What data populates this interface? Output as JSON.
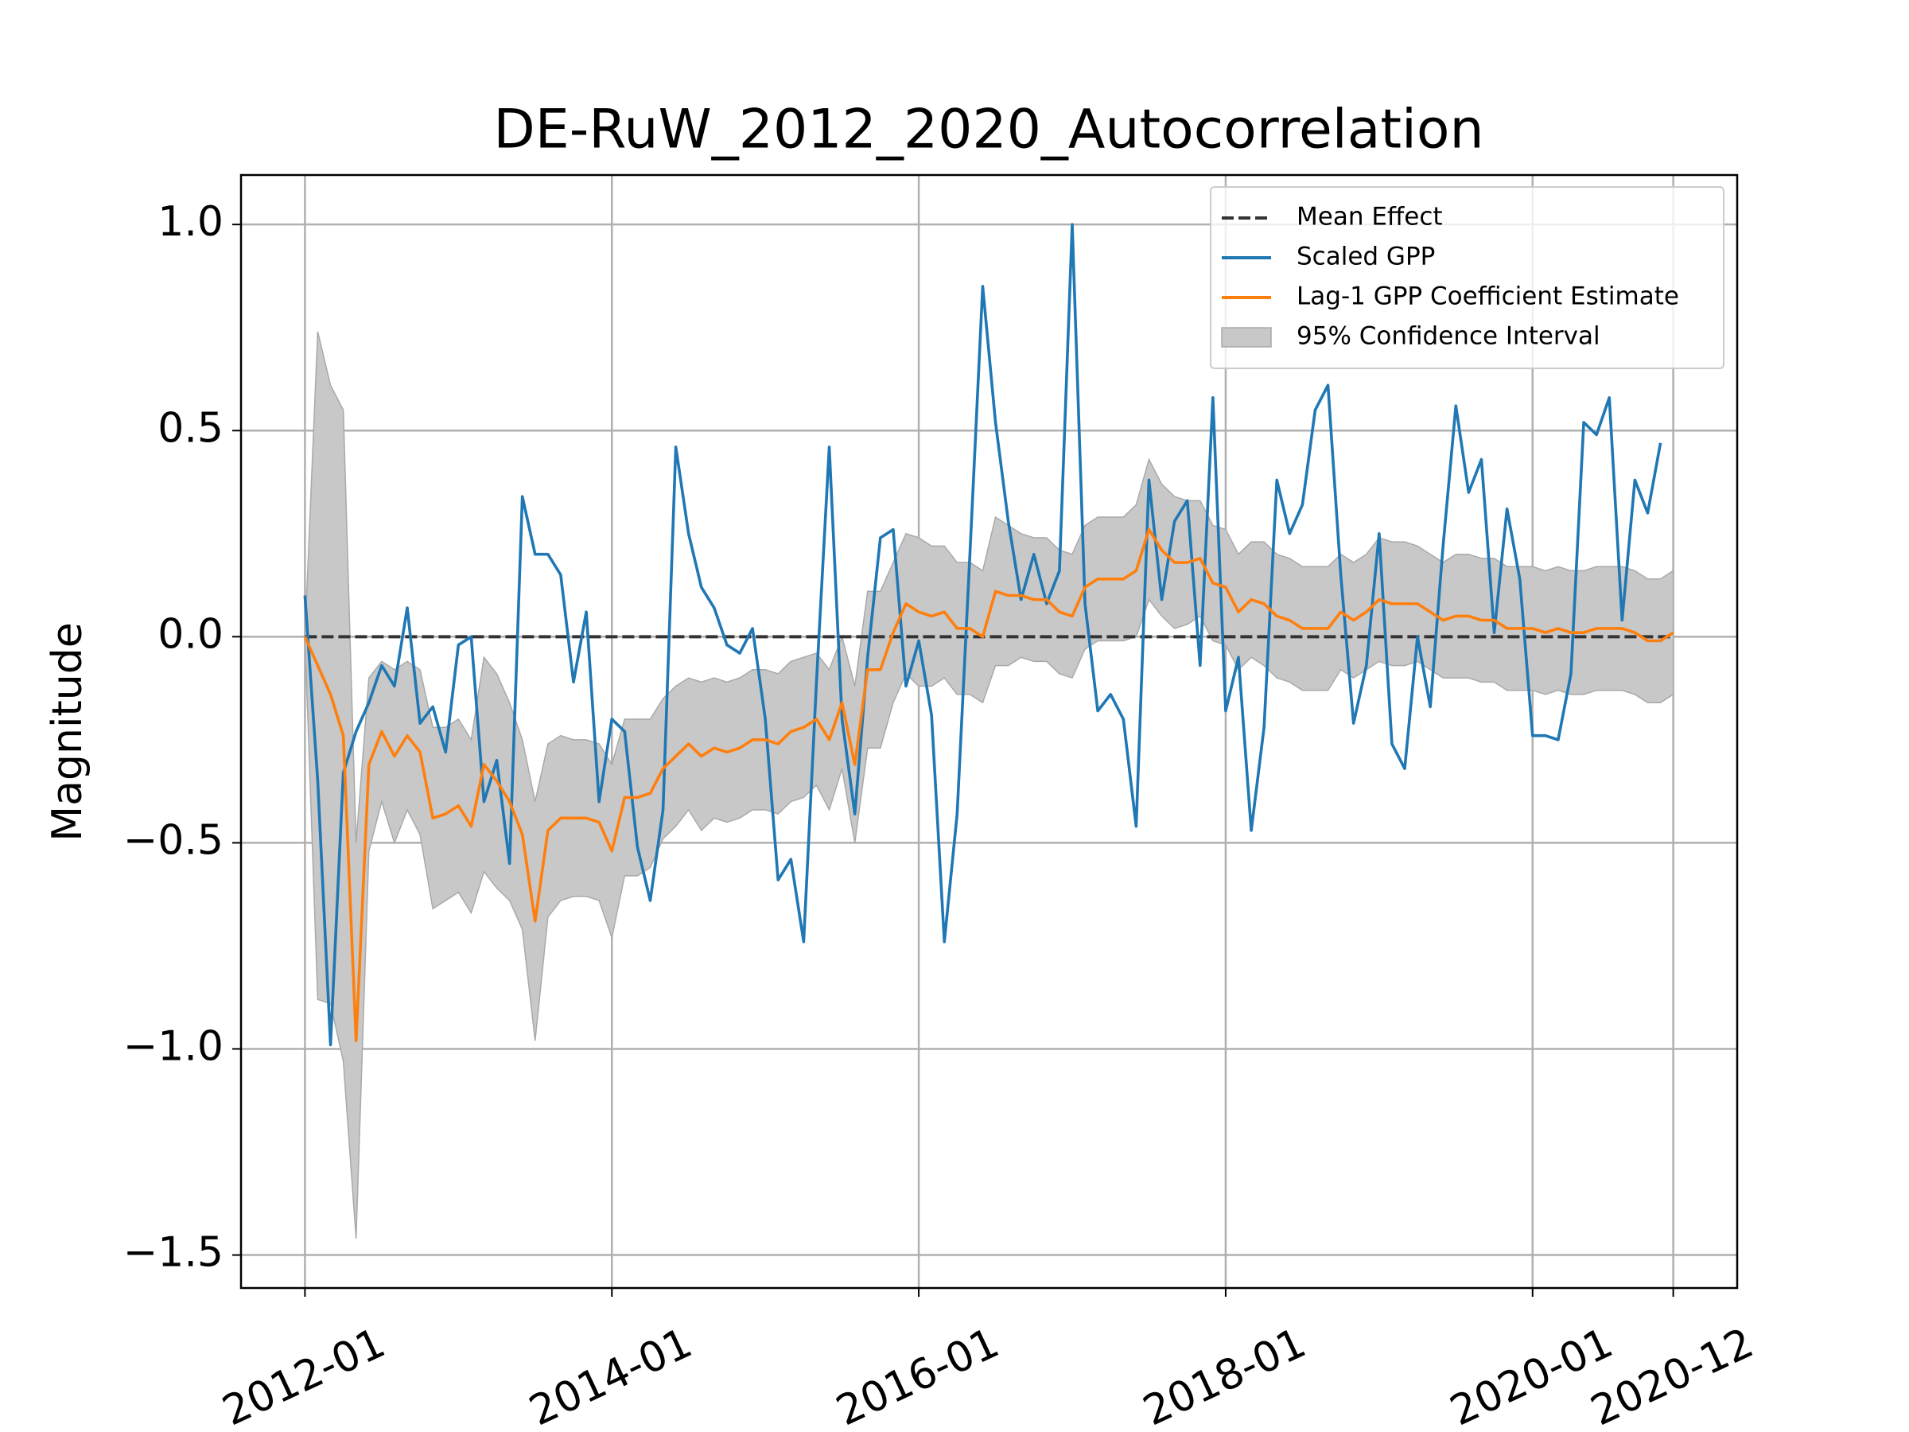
{
  "chart_data": {
    "type": "line",
    "title": "DE-RuW_2012_2020_Autocorrelation",
    "y_label": "Magnitude",
    "grid": true,
    "legend": "upper right",
    "xlim": [
      "2011-08",
      "2021-05"
    ],
    "xticks": [
      "2012-01",
      "2014-01",
      "2016-01",
      "2018-01",
      "2020-01",
      "2020-12"
    ],
    "ylim": [
      -1.58,
      1.12
    ],
    "yticks": [
      {
        "value": -1.5,
        "label": "−1.5"
      },
      {
        "value": -1.0,
        "label": "−1.0"
      },
      {
        "value": -0.5,
        "label": "−0.5"
      },
      {
        "value": 0,
        "label": "0.0"
      },
      0.5,
      {
        "value": 1.0,
        "label": "1.0"
      }
    ],
    "x": [
      "2012-01",
      "2012-02",
      "2012-03",
      "2012-04",
      "2012-05",
      "2012-06",
      "2012-07",
      "2012-08",
      "2012-09",
      "2012-10",
      "2012-11",
      "2012-12",
      "2013-01",
      "2013-02",
      "2013-03",
      "2013-04",
      "2013-05",
      "2013-06",
      "2013-07",
      "2013-08",
      "2013-09",
      "2013-10",
      "2013-11",
      "2013-12",
      "2014-01",
      "2014-02",
      "2014-03",
      "2014-04",
      "2014-05",
      "2014-06",
      "2014-07",
      "2014-08",
      "2014-09",
      "2014-10",
      "2014-11",
      "2014-12",
      "2015-01",
      "2015-02",
      "2015-03",
      "2015-04",
      "2015-05",
      "2015-06",
      "2015-07",
      "2015-08",
      "2015-09",
      "2015-10",
      "2015-11",
      "2015-12",
      "2016-01",
      "2016-02",
      "2016-03",
      "2016-04",
      "2016-05",
      "2016-06",
      "2016-07",
      "2016-08",
      "2016-09",
      "2016-10",
      "2016-11",
      "2016-12",
      "2017-01",
      "2017-02",
      "2017-03",
      "2017-04",
      "2017-05",
      "2017-06",
      "2017-07",
      "2017-08",
      "2017-09",
      "2017-10",
      "2017-11",
      "2017-12",
      "2018-01",
      "2018-02",
      "2018-03",
      "2018-04",
      "2018-05",
      "2018-06",
      "2018-07",
      "2018-08",
      "2018-09",
      "2018-10",
      "2018-11",
      "2018-12",
      "2019-01",
      "2019-02",
      "2019-03",
      "2019-04",
      "2019-05",
      "2019-06",
      "2019-07",
      "2019-08",
      "2019-09",
      "2019-10",
      "2019-11",
      "2019-12",
      "2020-01",
      "2020-02",
      "2020-03",
      "2020-04",
      "2020-05",
      "2020-06",
      "2020-07",
      "2020-08",
      "2020-09",
      "2020-10",
      "2020-11",
      "2020-12"
    ],
    "series": [
      {
        "name": "Mean Effect",
        "kind": "hline",
        "color": "#333333",
        "dashed": true,
        "value": 0
      },
      {
        "name": "Scaled GPP",
        "kind": "line",
        "color": "#1f77b4",
        "values": [
          0.1,
          -0.35,
          -0.99,
          -0.33,
          -0.23,
          -0.16,
          -0.07,
          -0.12,
          0.07,
          -0.21,
          -0.17,
          -0.28,
          -0.02,
          0.0,
          -0.4,
          -0.3,
          -0.55,
          0.34,
          0.2,
          0.2,
          0.15,
          -0.11,
          0.06,
          -0.4,
          -0.2,
          -0.23,
          -0.51,
          -0.64,
          -0.42,
          0.46,
          0.25,
          0.12,
          0.07,
          -0.02,
          -0.04,
          0.02,
          -0.2,
          -0.59,
          -0.54,
          -0.74,
          -0.11,
          0.46,
          -0.2,
          -0.43,
          -0.05,
          0.24,
          0.26,
          -0.12,
          -0.01,
          -0.19,
          -0.74,
          -0.43,
          0.2,
          0.85,
          0.52,
          0.28,
          0.09,
          0.2,
          0.08,
          0.16,
          1.0,
          0.08,
          -0.18,
          -0.14,
          -0.2,
          -0.46,
          0.38,
          0.09,
          0.28,
          0.33,
          -0.07,
          0.58,
          -0.18,
          -0.05,
          -0.47,
          -0.22,
          0.38,
          0.25,
          0.32,
          0.55,
          0.61,
          0.15,
          -0.21,
          -0.07,
          0.25,
          -0.26,
          -0.32,
          0.0,
          -0.17,
          0.22,
          0.56,
          0.35,
          0.43,
          0.01,
          0.31,
          0.14,
          -0.24,
          -0.24,
          -0.25,
          -0.09,
          0.52,
          0.49,
          0.58,
          0.04,
          0.38,
          0.3,
          0.47,
          null
        ]
      },
      {
        "name": "Lag-1 GPP Coefficient Estimate",
        "kind": "line",
        "color": "#ff7f0e",
        "values": [
          0.0,
          -0.07,
          -0.14,
          -0.24,
          -0.98,
          -0.31,
          -0.23,
          -0.29,
          -0.24,
          -0.28,
          -0.44,
          -0.43,
          -0.41,
          -0.46,
          -0.31,
          -0.35,
          -0.4,
          -0.48,
          -0.69,
          -0.47,
          -0.44,
          -0.44,
          -0.44,
          -0.45,
          -0.52,
          -0.39,
          -0.39,
          -0.38,
          -0.32,
          -0.29,
          -0.26,
          -0.29,
          -0.27,
          -0.28,
          -0.27,
          -0.25,
          -0.25,
          -0.26,
          -0.23,
          -0.22,
          -0.2,
          -0.25,
          -0.16,
          -0.31,
          -0.08,
          -0.08,
          0.01,
          0.08,
          0.06,
          0.05,
          0.06,
          0.02,
          0.02,
          0.0,
          0.11,
          0.1,
          0.1,
          0.09,
          0.09,
          0.06,
          0.05,
          0.12,
          0.14,
          0.14,
          0.14,
          0.16,
          0.26,
          0.21,
          0.18,
          0.18,
          0.19,
          0.13,
          0.12,
          0.06,
          0.09,
          0.08,
          0.05,
          0.04,
          0.02,
          0.02,
          0.02,
          0.06,
          0.04,
          0.06,
          0.09,
          0.08,
          0.08,
          0.08,
          0.06,
          0.04,
          0.05,
          0.05,
          0.04,
          0.04,
          0.02,
          0.02,
          0.02,
          0.01,
          0.02,
          0.01,
          0.01,
          0.02,
          0.02,
          0.02,
          0.01,
          -0.01,
          -0.01,
          0.01
        ]
      },
      {
        "name": "95% Confidence Interval",
        "kind": "band",
        "color": "#c8c8c8",
        "edge": "#a9a9a9",
        "upper": [
          0.0,
          0.74,
          0.61,
          0.55,
          -0.5,
          -0.1,
          -0.06,
          -0.08,
          -0.06,
          -0.08,
          -0.22,
          -0.22,
          -0.2,
          -0.25,
          -0.05,
          -0.09,
          -0.16,
          -0.25,
          -0.4,
          -0.26,
          -0.24,
          -0.25,
          -0.25,
          -0.26,
          -0.31,
          -0.2,
          -0.2,
          -0.2,
          -0.15,
          -0.12,
          -0.1,
          -0.11,
          -0.1,
          -0.11,
          -0.1,
          -0.08,
          -0.08,
          -0.09,
          -0.06,
          -0.05,
          -0.04,
          -0.08,
          0.0,
          -0.12,
          0.11,
          0.11,
          0.18,
          0.25,
          0.24,
          0.22,
          0.22,
          0.18,
          0.18,
          0.16,
          0.29,
          0.27,
          0.25,
          0.24,
          0.24,
          0.21,
          0.2,
          0.27,
          0.29,
          0.29,
          0.29,
          0.32,
          0.43,
          0.37,
          0.34,
          0.33,
          0.33,
          0.27,
          0.26,
          0.2,
          0.23,
          0.23,
          0.2,
          0.19,
          0.17,
          0.17,
          0.17,
          0.2,
          0.18,
          0.2,
          0.24,
          0.23,
          0.23,
          0.22,
          0.2,
          0.18,
          0.2,
          0.2,
          0.19,
          0.19,
          0.17,
          0.17,
          0.17,
          0.16,
          0.17,
          0.16,
          0.16,
          0.17,
          0.17,
          0.17,
          0.16,
          0.14,
          0.14,
          0.16
        ],
        "lower": [
          0.0,
          -0.88,
          -0.89,
          -1.03,
          -1.46,
          -0.52,
          -0.4,
          -0.5,
          -0.42,
          -0.48,
          -0.66,
          -0.64,
          -0.62,
          -0.67,
          -0.57,
          -0.61,
          -0.64,
          -0.71,
          -0.98,
          -0.68,
          -0.64,
          -0.63,
          -0.63,
          -0.64,
          -0.73,
          -0.58,
          -0.58,
          -0.56,
          -0.49,
          -0.46,
          -0.42,
          -0.47,
          -0.44,
          -0.45,
          -0.44,
          -0.42,
          -0.42,
          -0.43,
          -0.4,
          -0.39,
          -0.36,
          -0.42,
          -0.32,
          -0.5,
          -0.27,
          -0.27,
          -0.16,
          -0.09,
          -0.12,
          -0.12,
          -0.1,
          -0.14,
          -0.14,
          -0.16,
          -0.07,
          -0.07,
          -0.05,
          -0.06,
          -0.06,
          -0.09,
          -0.1,
          -0.03,
          -0.01,
          -0.01,
          -0.01,
          0.0,
          0.09,
          0.05,
          0.02,
          0.03,
          0.05,
          -0.01,
          -0.02,
          -0.08,
          -0.05,
          -0.07,
          -0.1,
          -0.11,
          -0.13,
          -0.13,
          -0.13,
          -0.08,
          -0.1,
          -0.08,
          -0.06,
          -0.07,
          -0.07,
          -0.06,
          -0.08,
          -0.1,
          -0.1,
          -0.1,
          -0.11,
          -0.11,
          -0.13,
          -0.13,
          -0.13,
          -0.14,
          -0.13,
          -0.14,
          -0.14,
          -0.13,
          -0.13,
          -0.13,
          -0.14,
          -0.16,
          -0.16,
          -0.14
        ]
      }
    ]
  }
}
